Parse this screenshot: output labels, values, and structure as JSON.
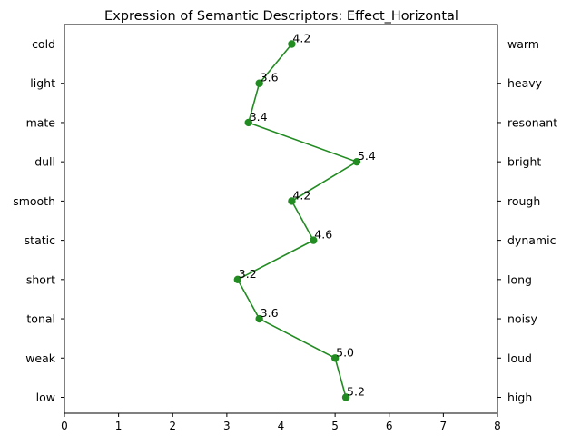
{
  "chart_data": {
    "type": "line",
    "title": "Expression of Semantic Descriptors: Effect_Horizontal",
    "xlabel": "",
    "ylabel": "",
    "xlim": [
      0,
      8
    ],
    "xticks": [
      0,
      1,
      2,
      3,
      4,
      5,
      6,
      7,
      8
    ],
    "left_labels": [
      "cold",
      "light",
      "mate",
      "dull",
      "smooth",
      "static",
      "short",
      "tonal",
      "weak",
      "low"
    ],
    "right_labels": [
      "warm",
      "heavy",
      "resonant",
      "bright",
      "rough",
      "dynamic",
      "long",
      "noisy",
      "loud",
      "high"
    ],
    "values": [
      4.2,
      3.6,
      3.4,
      5.4,
      4.2,
      4.6,
      3.2,
      3.6,
      5.0,
      5.2
    ],
    "value_labels": [
      "4.2",
      "3.6",
      "3.4",
      "5.4",
      "4.2",
      "4.6",
      "3.2",
      "3.6",
      "5.0",
      "5.2"
    ],
    "series_color": "#228b22",
    "grid": false,
    "legend": "none"
  }
}
